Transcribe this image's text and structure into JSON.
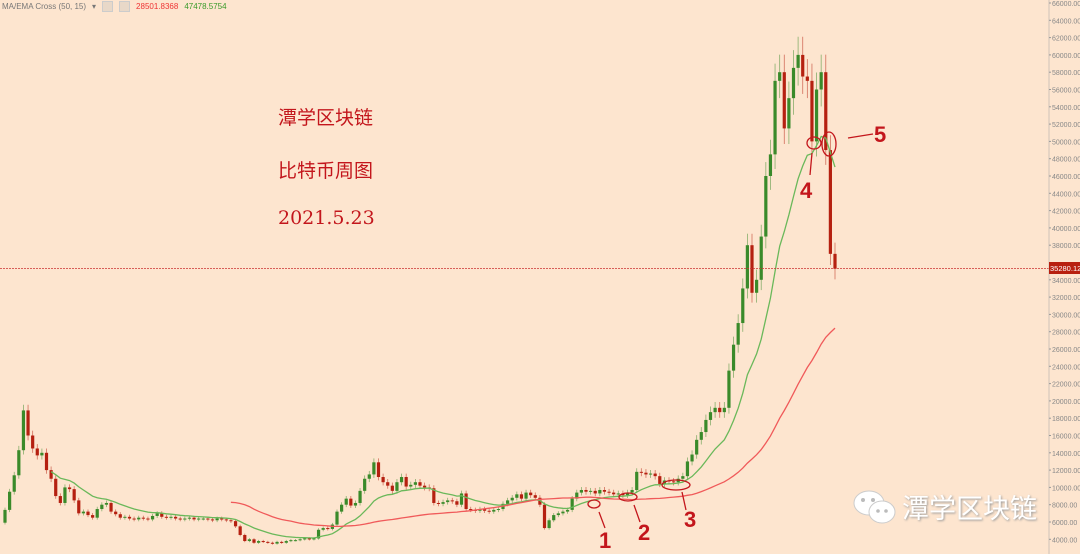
{
  "indicator": {
    "name": "MA/EMA Cross (50, 15)",
    "ma_value": "28501.8368",
    "ema_value": "47478.5754"
  },
  "overlay": {
    "line1": "潭学区块链",
    "line2": "比特币周图",
    "line3": "2021.5.23"
  },
  "watermark": {
    "text": "潭学区块链",
    "icon": "wechat-icon"
  },
  "annotations": [
    "1",
    "2",
    "3",
    "4",
    "5"
  ],
  "colors": {
    "up": "#3a8a2a",
    "down": "#b52010",
    "ma": "#f05a5a",
    "ema": "#6ab85a",
    "price_label": "#b8200f",
    "background": "#fde5cf"
  },
  "chart_data": {
    "type": "candlestick",
    "interval": "weekly",
    "ylim": [
      4000,
      66000
    ],
    "yticks": [
      4000,
      6000,
      8000,
      10000,
      12000,
      14000,
      16000,
      18000,
      20000,
      22000,
      24000,
      26000,
      28000,
      30000,
      32000,
      34000,
      36000,
      38000,
      40000,
      42000,
      44000,
      46000,
      48000,
      50000,
      52000,
      54000,
      56000,
      58000,
      60000,
      62000,
      64000,
      66000
    ],
    "current_price": "35280.12",
    "ma_period": 50,
    "ema_period": 15,
    "closes": [
      7400,
      9500,
      11400,
      14300,
      18900,
      16000,
      14500,
      13700,
      14000,
      12000,
      11000,
      9000,
      8200,
      10000,
      9800,
      8500,
      7000,
      7200,
      6800,
      6500,
      7500,
      8000,
      8200,
      7200,
      6900,
      6500,
      6600,
      6400,
      6300,
      6500,
      6400,
      6300,
      6700,
      7000,
      6600,
      6500,
      6600,
      6400,
      6300,
      6400,
      6500,
      6300,
      6400,
      6400,
      6300,
      6200,
      6400,
      6300,
      6200,
      6100,
      5500,
      4500,
      3800,
      4000,
      3600,
      3800,
      3700,
      3600,
      3500,
      3700,
      3600,
      3800,
      3900,
      3900,
      4000,
      4100,
      4000,
      4100,
      5100,
      5300,
      5200,
      5700,
      7200,
      8000,
      8700,
      7900,
      8200,
      9600,
      11000,
      11500,
      12900,
      11200,
      10600,
      10200,
      9600,
      10600,
      11200,
      10100,
      10300,
      10600,
      10200,
      10000,
      9900,
      8200,
      8100,
      8300,
      8500,
      8400,
      8000,
      9300,
      7500,
      7400,
      7300,
      7500,
      7300,
      7200,
      7400,
      7500,
      8100,
      8500,
      8800,
      9200,
      8700,
      9400,
      9100,
      8800,
      8000,
      5300,
      6200,
      6800,
      7000,
      7200,
      7400,
      8700,
      9400,
      9700,
      9500,
      9600,
      9300,
      9700,
      9500,
      9400,
      9200,
      9300,
      9100,
      9400,
      9700,
      11800,
      11700,
      11500,
      11600,
      11300,
      10400,
      10800,
      10700,
      10600,
      11000,
      11300,
      13000,
      13800,
      15500,
      16400,
      17800,
      18700,
      19200,
      18700,
      19200,
      23500,
      26500,
      29000,
      33000,
      38000,
      32500,
      34000,
      39000,
      46000,
      48500,
      57000,
      58000,
      51500,
      55000,
      58500,
      60000,
      57500,
      57000,
      50000,
      56000,
      58000,
      49000,
      37000,
      35280
    ]
  }
}
